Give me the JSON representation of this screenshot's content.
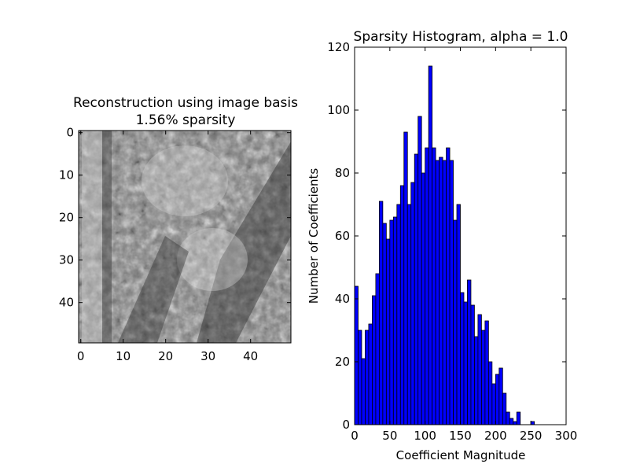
{
  "chart_data": [
    {
      "type": "image",
      "title": "Reconstruction using image basis",
      "subtitle": "1.56% sparsity",
      "xlim": [
        0,
        49
      ],
      "ylim": [
        0,
        49
      ],
      "xticks": [
        "0",
        "10",
        "20",
        "30",
        "40"
      ],
      "yticks": [
        "0",
        "10",
        "20",
        "30",
        "40"
      ],
      "colormap": "grayscale"
    },
    {
      "type": "bar",
      "title": "Sparsity Histogram, alpha = 1.0",
      "xlabel": "Coefficient Magnitude",
      "ylabel": "Number of Coefficients",
      "xlim": [
        0,
        300
      ],
      "ylim": [
        0,
        120
      ],
      "xticks": [
        "0",
        "50",
        "100",
        "150",
        "200",
        "250",
        "300"
      ],
      "yticks": [
        "0",
        "20",
        "40",
        "60",
        "80",
        "100",
        "120"
      ],
      "bar_color": "#0000ff",
      "bin_width": 5,
      "values": [
        44,
        30,
        21,
        30,
        32,
        41,
        48,
        71,
        64,
        59,
        65,
        66,
        70,
        76,
        93,
        70,
        77,
        86,
        98,
        80,
        88,
        114,
        88,
        84,
        85,
        84,
        88,
        84,
        65,
        70,
        42,
        39,
        46,
        38,
        28,
        35,
        30,
        33,
        20,
        13,
        16,
        18,
        10,
        4,
        2,
        1,
        4,
        0,
        0,
        0,
        1
      ]
    }
  ]
}
